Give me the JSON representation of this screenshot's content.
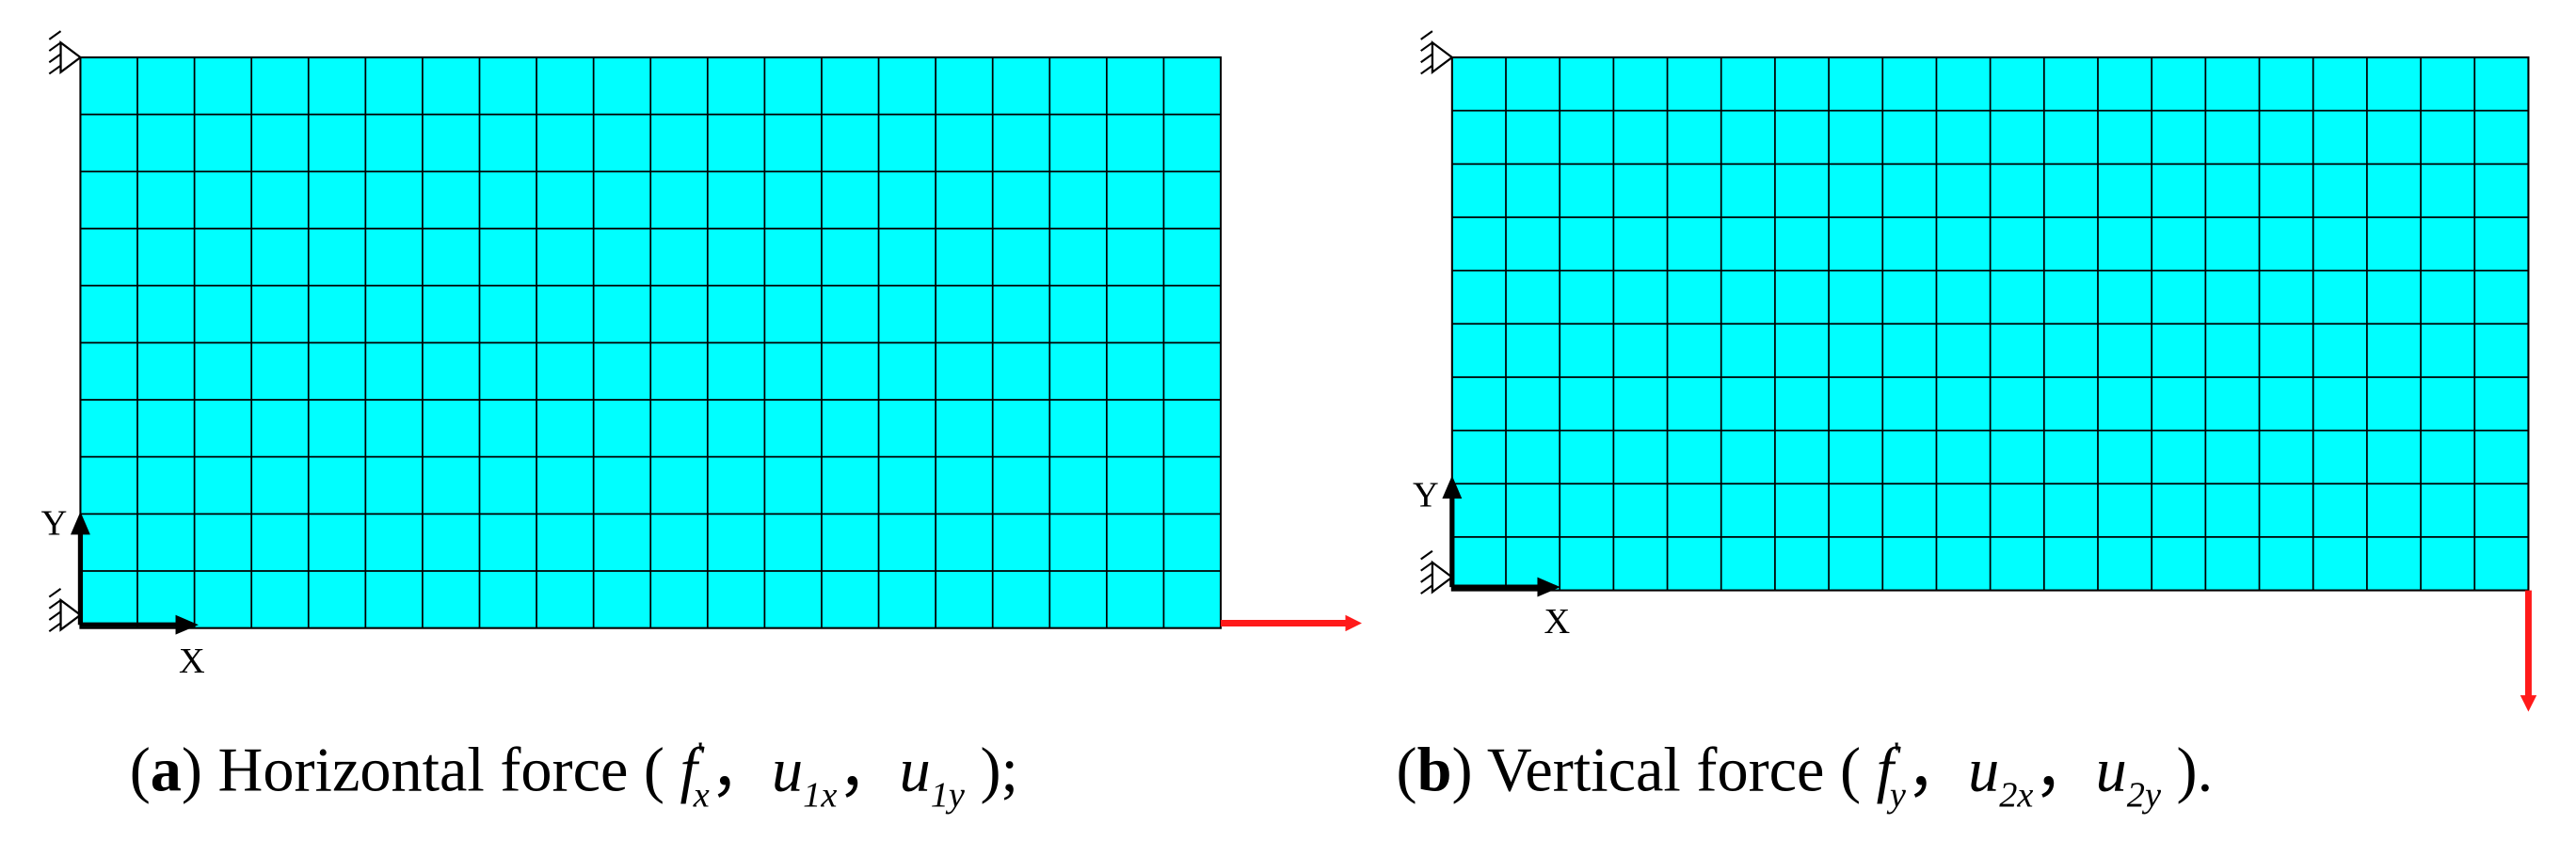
{
  "panels": [
    {
      "prefix": "(",
      "tag": "a",
      "suffix": ")",
      "caption": " Horizontal force ( ",
      "symbols": [
        {
          "base": "f",
          "sup": "'",
          "sub": "x",
          "after": "，"
        },
        {
          "base": "u",
          "sub": "1x",
          "after": "，"
        },
        {
          "base": "u",
          "sub": "1y",
          "after": " );"
        }
      ],
      "axis_x": "X",
      "axis_y": "Y"
    },
    {
      "prefix": "(",
      "tag": "b",
      "suffix": ")",
      "caption": " Vertical force ( ",
      "symbols": [
        {
          "base": "f",
          "sup": "'",
          "sub": "y",
          "after": "，"
        },
        {
          "base": "u",
          "sub": "2x",
          "after": "，"
        },
        {
          "base": "u",
          "sub": "2y",
          "after": " )."
        }
      ],
      "axis_x": "X",
      "axis_y": "Y"
    }
  ]
}
